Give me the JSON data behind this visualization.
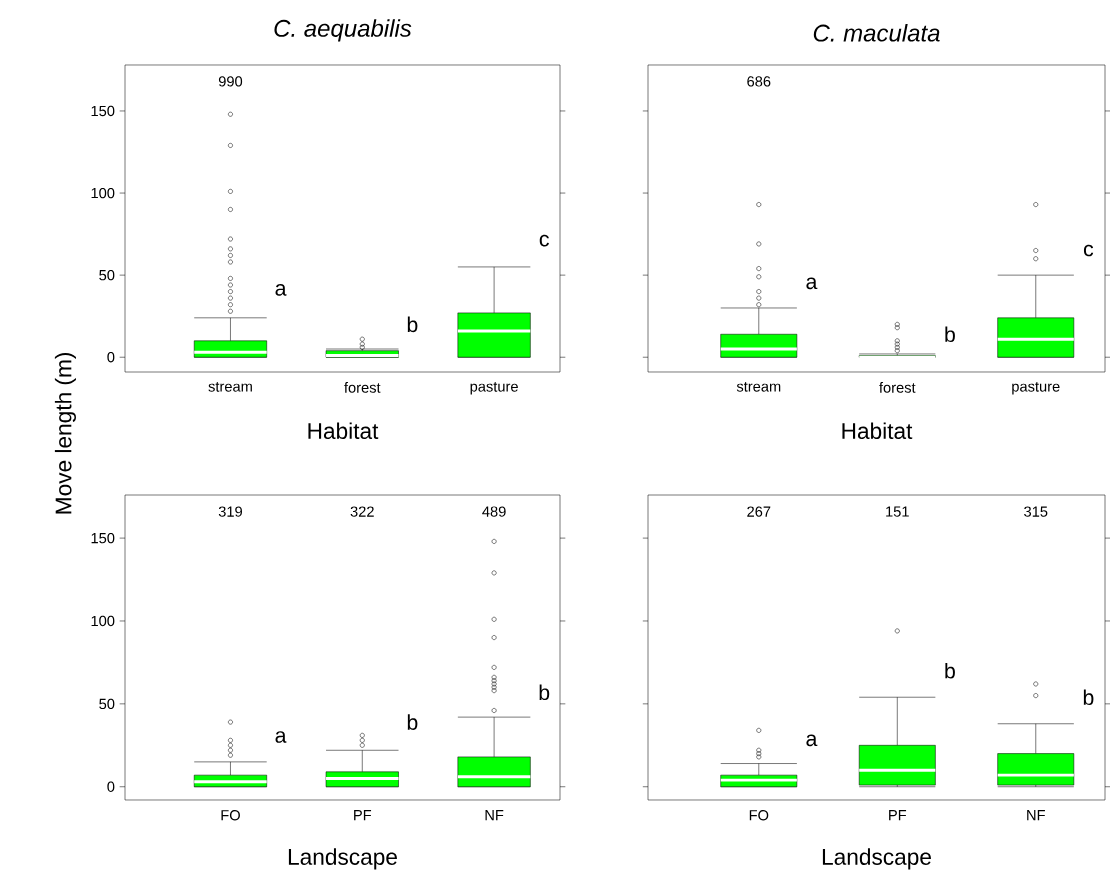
{
  "chart_data": [
    {
      "type": "box",
      "title": "C. aequabilis",
      "xlabel": "Habitat",
      "ylabel": "Move length (m)",
      "categories": [
        "stream",
        "forest",
        "pasture"
      ],
      "ylim": [
        -9,
        178
      ],
      "yticks": [
        0,
        50,
        100,
        150
      ],
      "tick_labels": "xy",
      "marker": "circle",
      "series": [
        {
          "color": "#00ff00",
          "boxes": [
            {
              "low": 0,
              "q1": 0,
              "median": 3,
              "q3": 10,
              "high": 24,
              "outliers": [
                28,
                32,
                36,
                40,
                44,
                48,
                58,
                62,
                66,
                72,
                90,
                101,
                129,
                148
              ]
            },
            {
              "low": 0,
              "q1": 0,
              "median": 1,
              "q3": 4,
              "high": 5,
              "outliers": [
                6,
                8,
                11
              ]
            },
            {
              "low": 0,
              "q1": 0,
              "median": 16,
              "q3": 27,
              "high": 55
            }
          ]
        }
      ],
      "annotations": [
        "990",
        "a",
        "b",
        "c"
      ]
    },
    {
      "type": "box",
      "title": "C. maculata",
      "xlabel": "Habitat",
      "categories": [
        "stream",
        "forest",
        "pasture"
      ],
      "ylim": [
        -9,
        178
      ],
      "yticks": [
        0,
        50,
        100,
        150
      ],
      "tick_labels": "x",
      "marker": "circle",
      "series": [
        {
          "color": "#00ff00",
          "boxes": [
            {
              "low": 0,
              "q1": 0,
              "median": 5,
              "q3": 14,
              "high": 30,
              "outliers": [
                32,
                36,
                40,
                49,
                54,
                69,
                93
              ]
            },
            {
              "low": 0,
              "q1": 0,
              "median": 0,
              "q3": 1,
              "high": 2,
              "outliers": [
                4,
                6,
                8,
                10,
                18,
                20
              ]
            },
            {
              "low": 0,
              "q1": 0,
              "median": 11,
              "q3": 24,
              "high": 50,
              "outliers": [
                60,
                65,
                93
              ]
            }
          ]
        }
      ],
      "annotations": [
        "686",
        "a",
        "b",
        "c"
      ]
    },
    {
      "type": "box",
      "xlabel": "Landscape",
      "categories": [
        "FO",
        "PF",
        "NF"
      ],
      "ylim": [
        -8,
        176
      ],
      "yticks": [
        0,
        50,
        100,
        150
      ],
      "tick_labels": "xy",
      "marker": "circle",
      "series": [
        {
          "color": "#00ff00",
          "boxes": [
            {
              "low": 0,
              "q1": 0,
              "median": 3,
              "q3": 7,
              "high": 15,
              "outliers": [
                19,
                22,
                25,
                28,
                39
              ]
            },
            {
              "low": 0,
              "q1": 0,
              "median": 5,
              "q3": 9,
              "high": 22,
              "outliers": [
                25,
                28,
                31
              ]
            },
            {
              "low": 0,
              "q1": 0,
              "median": 6,
              "q3": 18,
              "high": 42,
              "outliers": [
                46,
                58,
                60,
                62,
                64,
                66,
                72,
                90,
                101,
                129,
                148
              ]
            }
          ]
        }
      ],
      "annotations": [
        "319",
        "322",
        "489",
        "a",
        "b",
        "b"
      ]
    },
    {
      "type": "box",
      "xlabel": "Landscape",
      "categories": [
        "FO",
        "PF",
        "NF"
      ],
      "ylim": [
        -8,
        176
      ],
      "yticks": [
        0,
        50,
        100,
        150
      ],
      "tick_labels": "x",
      "marker": "circle",
      "series": [
        {
          "color": "#00ff00",
          "boxes": [
            {
              "low": 0,
              "q1": 0,
              "median": 4,
              "q3": 7,
              "high": 14,
              "outliers": [
                18,
                20,
                22,
                34
              ]
            },
            {
              "low": 0,
              "q1": 1,
              "median": 10,
              "q3": 25,
              "high": 54,
              "outliers": [
                94
              ]
            },
            {
              "low": 0,
              "q1": 1,
              "median": 7,
              "q3": 20,
              "high": 38,
              "outliers": [
                55,
                62
              ]
            }
          ]
        }
      ],
      "annotations": [
        "267",
        "151",
        "315",
        "a",
        "b",
        "b"
      ]
    }
  ]
}
